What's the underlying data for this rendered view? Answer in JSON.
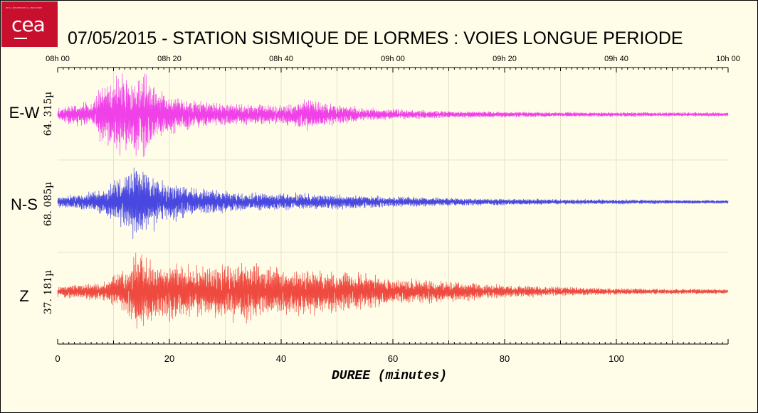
{
  "logo": {
    "text": "cea",
    "tagline": "DE LA RECHERCHE À L'INDUSTRIE"
  },
  "chart_data": {
    "type": "line",
    "title": "07/05/2015  -  STATION SISMIQUE DE LORMES : VOIES LONGUE PERIODE",
    "xlabel": "DUREE  (minutes)",
    "xlim": [
      0,
      120
    ],
    "x_ticks": [
      0,
      20,
      40,
      60,
      80,
      100
    ],
    "x_tick_labels": [
      "0",
      "20",
      "40",
      "60",
      "80",
      "100"
    ],
    "top_time_ticks": [
      0,
      20,
      40,
      60,
      80,
      100,
      120
    ],
    "top_time_labels": [
      "08h 00",
      "08h 20",
      "08h 40",
      "09h 00",
      "09h 20",
      "09h 40",
      "10h 00"
    ],
    "grid": true,
    "series": [
      {
        "name": "E-W",
        "scale_label": "64. 315µ",
        "color": "#f040e8",
        "envelope": [
          [
            0,
            0.12
          ],
          [
            2,
            0.2
          ],
          [
            6,
            0.25
          ],
          [
            8,
            0.6
          ],
          [
            11,
            0.8
          ],
          [
            14,
            0.75
          ],
          [
            15.5,
            0.9
          ],
          [
            18,
            0.5
          ],
          [
            22,
            0.35
          ],
          [
            30,
            0.22
          ],
          [
            40,
            0.2
          ],
          [
            45,
            0.3
          ],
          [
            48,
            0.25
          ],
          [
            55,
            0.12
          ],
          [
            70,
            0.07
          ],
          [
            90,
            0.05
          ],
          [
            120,
            0.04
          ]
        ]
      },
      {
        "name": "N-S",
        "scale_label": "68. 085µ",
        "color": "#4848e0",
        "envelope": [
          [
            0,
            0.12
          ],
          [
            4,
            0.18
          ],
          [
            8,
            0.25
          ],
          [
            12,
            0.6
          ],
          [
            14,
            0.85
          ],
          [
            16,
            0.7
          ],
          [
            20,
            0.45
          ],
          [
            25,
            0.3
          ],
          [
            35,
            0.2
          ],
          [
            45,
            0.18
          ],
          [
            55,
            0.15
          ],
          [
            70,
            0.09
          ],
          [
            90,
            0.06
          ],
          [
            120,
            0.04
          ]
        ]
      },
      {
        "name": "Z",
        "scale_label": "37. 181µ",
        "color": "#ef4a40",
        "envelope": [
          [
            0,
            0.12
          ],
          [
            8,
            0.2
          ],
          [
            12,
            0.45
          ],
          [
            14.5,
            0.9
          ],
          [
            16,
            0.7
          ],
          [
            20,
            0.6
          ],
          [
            28,
            0.55
          ],
          [
            34,
            0.65
          ],
          [
            40,
            0.5
          ],
          [
            50,
            0.45
          ],
          [
            60,
            0.3
          ],
          [
            70,
            0.22
          ],
          [
            80,
            0.14
          ],
          [
            90,
            0.1
          ],
          [
            100,
            0.07
          ],
          [
            110,
            0.06
          ],
          [
            120,
            0.05
          ]
        ]
      }
    ]
  }
}
